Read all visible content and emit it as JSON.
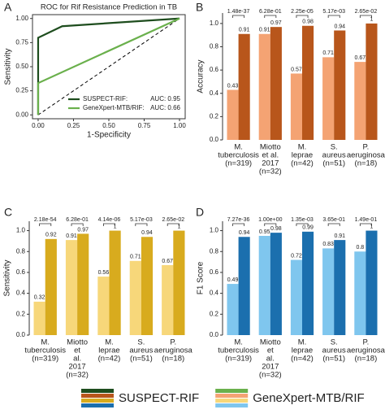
{
  "chart_data": [
    {
      "type": "line",
      "panel": "A",
      "title": "ROC for Rif Resistance Prediction in TB",
      "xlabel": "1-Specificity",
      "ylabel": "Sensitivity",
      "xlim": [
        -0.04,
        1.04
      ],
      "ylim": [
        -0.04,
        1.04
      ],
      "xticks": [
        {
          "value": 0,
          "label": "0.00"
        },
        {
          "value": 0.25,
          "label": "0.25"
        },
        {
          "value": 0.5,
          "label": "0.50"
        },
        {
          "value": 0.75,
          "label": "0.75"
        },
        {
          "value": 1,
          "label": "1.00"
        }
      ],
      "yticks": [
        {
          "value": 0,
          "label": "0.00"
        },
        {
          "value": 0.25,
          "label": "0.25"
        },
        {
          "value": 0.5,
          "label": "0.50"
        },
        {
          "value": 0.75,
          "label": "0.75"
        },
        {
          "value": 1,
          "label": "1.00"
        }
      ],
      "series": [
        {
          "name": "SUSPECT-RIF:",
          "annotation": "AUC: 0.95",
          "color": "#1e4d1e",
          "x": [
            0,
            0,
            0.17,
            1
          ],
          "values": [
            0,
            0.8,
            0.92,
            1
          ]
        },
        {
          "name": "GeneXpert-MTB/RIF:",
          "annotation": "AUC: 0.66",
          "color": "#6ab04c",
          "x": [
            0,
            0,
            1
          ],
          "values": [
            0,
            0.33,
            1
          ]
        }
      ]
    },
    {
      "type": "bar",
      "panel": "B",
      "ylabel": "Accuracy",
      "ylim": [
        0,
        1.09
      ],
      "yticks": [
        {
          "value": 0,
          "label": "0.0"
        },
        0.2,
        0.4,
        0.6,
        0.8,
        {
          "value": 1,
          "label": "1.0"
        }
      ],
      "categories": [
        [
          "M.",
          "tuberculosis",
          "(n=319)"
        ],
        [
          "Miotto",
          "et al.",
          "2017",
          "(n=32)"
        ],
        [
          "M.",
          "leprae",
          "(n=42)"
        ],
        [
          "S.",
          "aureus",
          "(n=51)"
        ],
        [
          "P.",
          "aeruginosa",
          "(n=18)"
        ]
      ],
      "p_values": [
        "1.48e-37",
        "6.28e-01",
        "2.25e-05",
        "5.17e-03",
        "2.65e-02"
      ],
      "series": [
        {
          "color": "#f4a373",
          "values": [
            0.43,
            0.91,
            0.57,
            0.71,
            0.67
          ]
        },
        {
          "color": "#b8561b",
          "values": [
            0.91,
            0.97,
            0.98,
            0.94,
            1
          ]
        }
      ]
    },
    {
      "type": "bar",
      "panel": "C",
      "ylabel": "Sensitivity",
      "ylim": [
        0,
        1.09
      ],
      "yticks": [
        {
          "value": 0,
          "label": "0.0"
        },
        0.2,
        0.4,
        0.6,
        0.8,
        {
          "value": 1,
          "label": "1.0"
        }
      ],
      "categories": [
        [
          "M.",
          "tuberculosis",
          "(n=319)"
        ],
        [
          "Miotto",
          "et",
          "al.",
          "2017",
          "(n=32)"
        ],
        [
          "M.",
          "leprae",
          "(n=42)"
        ],
        [
          "S.",
          "aureus",
          "(n=51)"
        ],
        [
          "P.",
          "aeruginosa",
          "(n=18)"
        ]
      ],
      "p_values": [
        "2.18e-54",
        "6.28e-01",
        "4.14e-06",
        "5.17e-03",
        "2.65e-02"
      ],
      "series": [
        {
          "color": "#f7d77a",
          "values": [
            0.32,
            0.91,
            0.56,
            0.71,
            0.67
          ]
        },
        {
          "color": "#d8ab1e",
          "values": [
            0.92,
            0.97,
            1,
            0.94,
            1
          ]
        }
      ]
    },
    {
      "type": "bar",
      "panel": "D",
      "ylabel": "F1 Score",
      "ylim": [
        0,
        1.09
      ],
      "yticks": [
        {
          "value": 0,
          "label": "0.0"
        },
        0.2,
        0.4,
        0.6,
        0.8,
        {
          "value": 1,
          "label": "1.0"
        }
      ],
      "categories": [
        [
          "M.",
          "tuberculosis",
          "(n=319)"
        ],
        [
          "Miotto",
          "et",
          "al.",
          "2017",
          "(n=32)"
        ],
        [
          "M.",
          "leprae",
          "(n=42)"
        ],
        [
          "S.",
          "aureus",
          "(n=51)"
        ],
        [
          "P.",
          "aeruginosa",
          "(n=18)"
        ]
      ],
      "p_values": [
        "7.27e-36",
        "1.00e+00",
        "1.35e-03",
        "3.65e-01",
        "1.49e-01"
      ],
      "series": [
        {
          "color": "#7fc6ee",
          "values": [
            0.49,
            0.95,
            0.72,
            0.83,
            0.8
          ]
        },
        {
          "color": "#1b6fae",
          "values": [
            0.94,
            0.98,
            0.99,
            0.91,
            1
          ]
        }
      ]
    }
  ],
  "legend": [
    {
      "label": "SUSPECT-RIF",
      "colors": [
        "#1e4d1e",
        "#b8561b",
        "#d8ab1e",
        "#1b6fae"
      ]
    },
    {
      "label": "GeneXpert-MTB/RIF",
      "colors": [
        "#6ab04c",
        "#f4a373",
        "#f7d77a",
        "#7fc6ee"
      ]
    }
  ]
}
